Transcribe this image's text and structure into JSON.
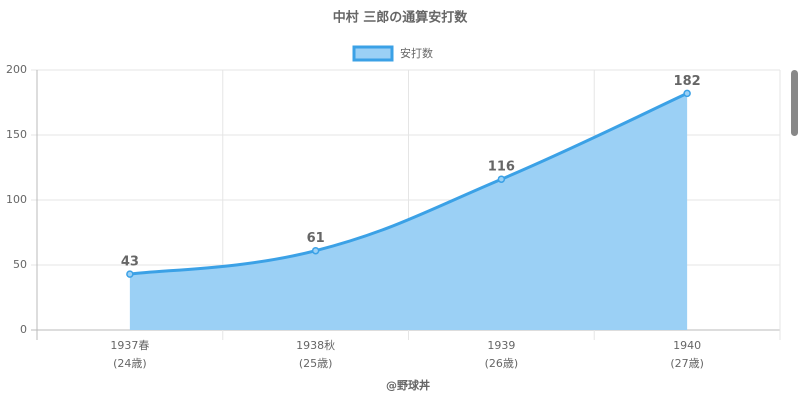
{
  "chart_data": {
    "type": "line",
    "title": "中村 三郎の通算安打数",
    "x_label": "@野球丼",
    "categories": [
      [
        "1937春",
        "(24歳)"
      ],
      [
        "1938秋",
        "(25歳)"
      ],
      [
        "1939",
        "(26歳)"
      ],
      [
        "1940",
        "(27歳)"
      ]
    ],
    "series": [
      {
        "name": "安打数",
        "color": "#3ba1e6",
        "fill": "#9bd0f5",
        "values": [
          43,
          61,
          116,
          182
        ]
      }
    ],
    "ylim": [
      0,
      200
    ],
    "yticks": [
      0,
      50,
      100,
      150,
      200
    ],
    "grid": true,
    "legend": "top",
    "data_labels": true
  }
}
